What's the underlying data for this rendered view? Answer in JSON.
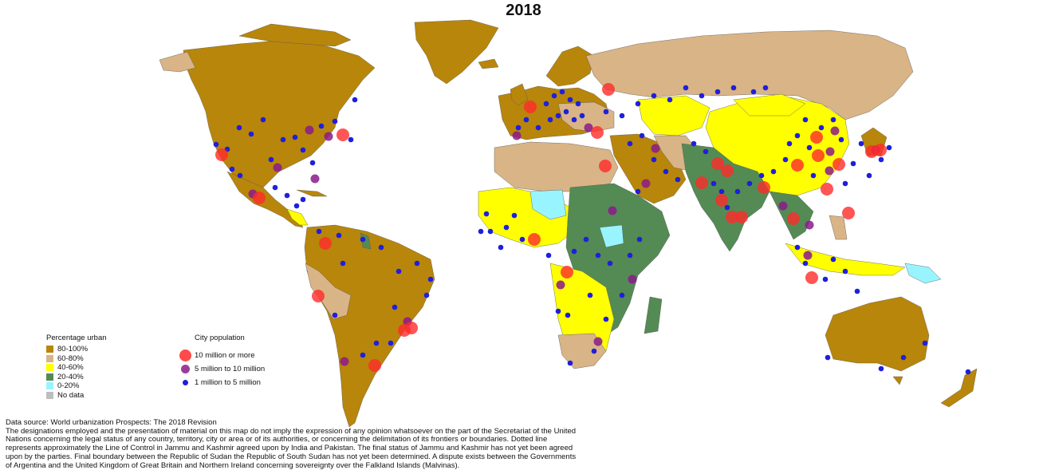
{
  "title": "2018",
  "colors": {
    "ocean": "#ffffff",
    "u80_100": "#b8860b",
    "u60_80": "#d9b486",
    "u40_60": "#ffff00",
    "u20_40": "#548b54",
    "u0_20": "#98f5ff",
    "nodata": "#bebebe",
    "city_10m": "#ff2a2a",
    "city_5m": "#8b1a8b",
    "city_1m": "#1f1fdd"
  },
  "urban_legend": {
    "title": "Percentage urban",
    "items": [
      {
        "label": "80-100%",
        "color": "#b8860b"
      },
      {
        "label": "60-80%",
        "color": "#d9b486"
      },
      {
        "label": "40-60%",
        "color": "#ffff00"
      },
      {
        "label": "20-40%",
        "color": "#548b54"
      },
      {
        "label": "0-20%",
        "color": "#98f5ff"
      },
      {
        "label": "No data",
        "color": "#bebebe"
      }
    ]
  },
  "city_legend": {
    "title": "City population",
    "items": [
      {
        "label": "10 million or more",
        "color": "#ff2a2a"
      },
      {
        "label": "5 million to 10 million",
        "color": "#8b1a8b"
      },
      {
        "label": "1 million to 5 million",
        "color": "#1f1fdd"
      }
    ]
  },
  "source": "Data source: World urbanization Prospects: The 2018 Revision",
  "disclaimer": "The designations employed and the presentation of material on this map do not imply the expression of any opinion whatsoever on the part of the Secretariat of the United Nations concerning the legal status of any country, territory, city or area or of its authorities, or concerning the delimitation of its frontiers or boundaries. Dotted line represents approximately the Line of Control in Jammu and Kashmir agreed upon by India and Pakistan. The final status of Jammu and Kashmir has not yet been agreed upon by the parties. Final boundary between the Republic of Sudan the Republic of South Sudan has not yet been determined. A dispute exists between the Governments of Argentina and the United Kingdom of Great Britain and Northern Ireland concerning sovereignty over the Falkland Islands (Malvinas)."
}
